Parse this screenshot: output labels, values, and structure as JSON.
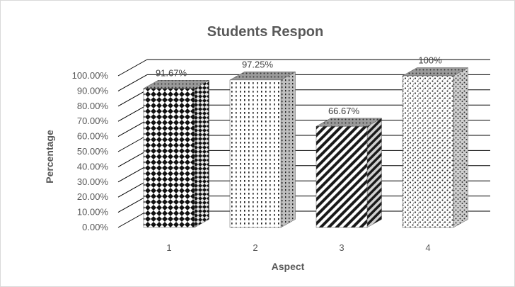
{
  "chart_data": {
    "type": "bar",
    "title": "Students Respon",
    "xlabel": "Aspect",
    "ylabel": "Percentage",
    "categories": [
      "1",
      "2",
      "3",
      "4"
    ],
    "values": [
      91.67,
      97.25,
      66.67,
      100
    ],
    "data_labels": [
      "91.67%",
      "97.25%",
      "66.67%",
      "100%"
    ],
    "y_ticks": [
      "0.00%",
      "10.00%",
      "20.00%",
      "30.00%",
      "40.00%",
      "50.00%",
      "60.00%",
      "70.00%",
      "80.00%",
      "90.00%",
      "100.00%"
    ],
    "ylim": [
      0,
      100
    ],
    "grid": true,
    "legend": "none",
    "style": "3d-column",
    "patterns": [
      "checker-diamonds",
      "dots",
      "diagonal-stripes",
      "speckle"
    ]
  }
}
